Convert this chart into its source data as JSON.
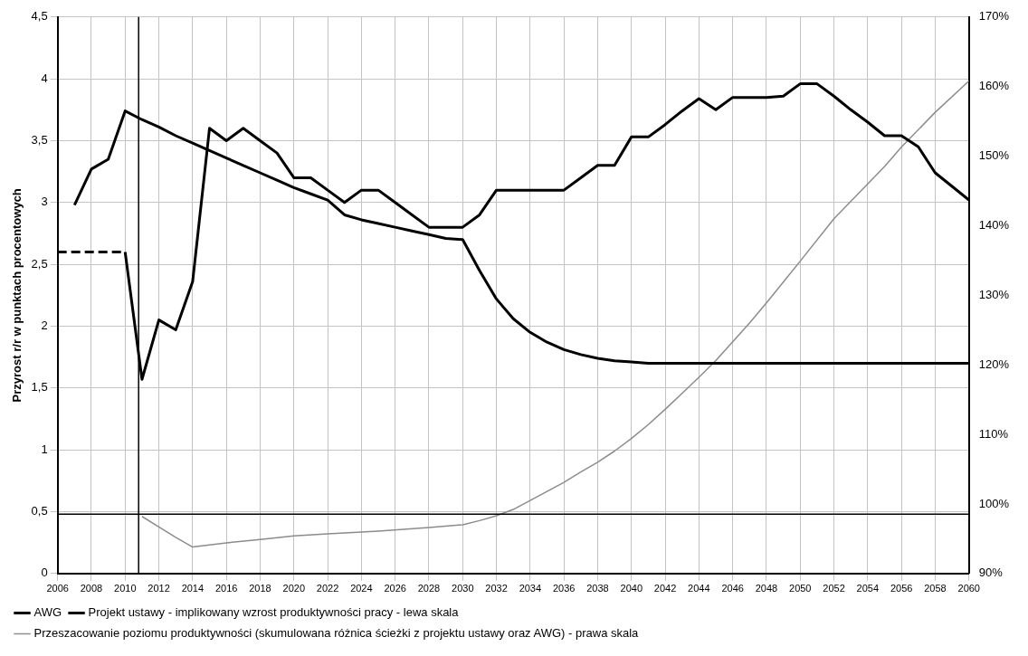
{
  "chart_data": {
    "type": "line",
    "ylabel": "Przyrost r/r w punktach procentowych",
    "xlim": [
      2006,
      2060
    ],
    "xticks": [
      2006,
      2008,
      2010,
      2012,
      2014,
      2016,
      2018,
      2020,
      2022,
      2024,
      2026,
      2028,
      2030,
      2032,
      2034,
      2036,
      2038,
      2040,
      2042,
      2044,
      2046,
      2048,
      2050,
      2052,
      2054,
      2056,
      2058,
      2060
    ],
    "ylim": [
      0,
      4.5
    ],
    "yticks": [
      0,
      {
        "value": 0.5,
        "label": "0,5"
      },
      1,
      {
        "value": 1.5,
        "label": "1,5"
      },
      2,
      {
        "value": 2.5,
        "label": "2,5"
      },
      3,
      {
        "value": 3.5,
        "label": "3,5"
      },
      4,
      {
        "value": 4.5,
        "label": "4,5"
      }
    ],
    "y2lim": [
      90,
      170
    ],
    "y2ticks": [
      {
        "value": 90,
        "label": "90%"
      },
      {
        "value": 100,
        "label": "100%"
      },
      {
        "value": 110,
        "label": "110%"
      },
      {
        "value": 120,
        "label": "120%"
      },
      {
        "value": 130,
        "label": "130%"
      },
      {
        "value": 140,
        "label": "140%"
      },
      {
        "value": 150,
        "label": "150%"
      },
      {
        "value": 160,
        "label": "160%"
      },
      {
        "value": 170,
        "label": "170%"
      }
    ],
    "grid": true,
    "legend": "bottom",
    "marker": "none",
    "ref_lines": [
      {
        "axis": "y",
        "value": 0.48,
        "color": "#000000"
      },
      {
        "axis": "x",
        "value": 2010.8,
        "color": "#000000"
      }
    ],
    "series": [
      {
        "name": "AWG",
        "color": "#000000",
        "x": [
          2010,
          2011,
          2012,
          2013,
          2014,
          2015,
          2016,
          2017,
          2018,
          2019,
          2020,
          2021,
          2022,
          2023,
          2024,
          2025,
          2026,
          2027,
          2028,
          2029,
          2030,
          2031,
          2032,
          2033,
          2034,
          2035,
          2036,
          2037,
          2038,
          2039,
          2040,
          2041,
          2042,
          2043,
          2044,
          2045,
          2046,
          2047,
          2048,
          2049,
          2050,
          2051,
          2052,
          2053,
          2054,
          2055,
          2056,
          2057,
          2058,
          2059,
          2060
        ],
        "values": [
          2.6,
          1.57,
          2.05,
          1.97,
          2.36,
          3.6,
          3.5,
          3.6,
          3.5,
          3.4,
          3.2,
          3.2,
          3.1,
          3.0,
          3.1,
          3.1,
          3.0,
          2.9,
          2.8,
          2.8,
          2.8,
          2.9,
          3.1,
          3.1,
          3.1,
          3.1,
          3.1,
          3.2,
          3.3,
          3.3,
          3.53,
          3.53,
          3.63,
          3.74,
          3.84,
          3.75,
          3.85,
          3.85,
          3.85,
          3.86,
          3.96,
          3.96,
          3.86,
          3.75,
          3.65,
          3.54,
          3.54,
          3.45,
          3.24,
          3.13,
          3.02
        ]
      },
      {
        "name": "Projekt ustawy - implikowany wzrost produktywności pracy - lewa skala",
        "color": "#000000",
        "x": [
          2007,
          2008,
          2009,
          2010,
          2011,
          2012,
          2013,
          2014,
          2015,
          2016,
          2017,
          2018,
          2019,
          2020,
          2021,
          2022,
          2023,
          2024,
          2025,
          2026,
          2027,
          2028,
          2029,
          2030,
          2031,
          2032,
          2033,
          2034,
          2035,
          2036,
          2037,
          2038,
          2039,
          2040,
          2041,
          2060
        ],
        "values": [
          2.98,
          3.27,
          3.35,
          3.74,
          3.67,
          3.61,
          3.54,
          3.48,
          3.42,
          3.36,
          3.3,
          3.24,
          3.18,
          3.12,
          3.07,
          3.02,
          2.9,
          2.86,
          2.83,
          2.8,
          2.77,
          2.74,
          2.71,
          2.7,
          2.45,
          2.22,
          2.06,
          1.95,
          1.87,
          1.81,
          1.77,
          1.74,
          1.72,
          1.71,
          1.7,
          1.7
        ]
      },
      {
        "name": "Przeszacowanie poziomu produktywności (skumulowana różnica ścieżki z projektu ustawy oraz AWG) - prawa skala",
        "color": "#8c8c8c",
        "axis": "y2",
        "x": [
          2011,
          2012,
          2013,
          2014,
          2016,
          2018,
          2020,
          2022,
          2025,
          2028,
          2030,
          2031,
          2032,
          2033,
          2034,
          2035,
          2036,
          2037,
          2038,
          2039,
          2040,
          2041,
          2042,
          2043,
          2044,
          2045,
          2046,
          2047,
          2048,
          2049,
          2050,
          2052,
          2054,
          2055,
          2056,
          2058,
          2060
        ],
        "values": [
          98.2,
          96.7,
          95.2,
          93.8,
          94.4,
          94.9,
          95.4,
          95.7,
          96.1,
          96.6,
          97.0,
          97.6,
          98.3,
          99.2,
          100.5,
          101.8,
          103.1,
          104.6,
          106.0,
          107.6,
          109.4,
          111.4,
          113.6,
          115.9,
          118.2,
          120.6,
          123.3,
          126.0,
          128.9,
          131.9,
          134.9,
          141.0,
          146.0,
          148.5,
          151.3,
          156.3,
          160.8
        ]
      },
      {
        "color": "#000000",
        "line_style": "dashed",
        "x": [
          2006,
          2007,
          2008,
          2009,
          2010
        ],
        "values": [
          2.6,
          2.6,
          2.6,
          2.6,
          2.6
        ]
      }
    ]
  }
}
